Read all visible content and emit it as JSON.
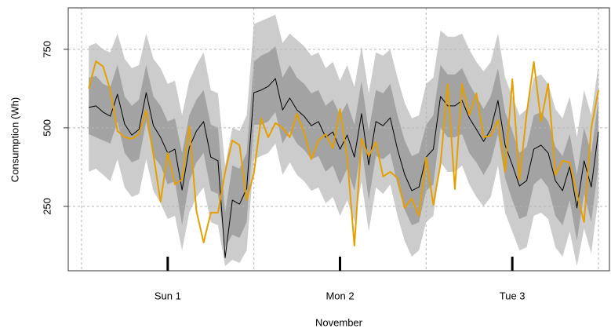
{
  "chart_data": {
    "type": "line",
    "x_label": "November",
    "y_label": "Consumption (Wh)",
    "x": [
      1,
      2,
      3,
      4,
      5,
      6,
      7,
      8,
      9,
      10,
      11,
      12,
      13,
      14,
      15,
      16,
      17,
      18,
      19,
      20,
      21,
      22,
      23,
      24,
      25,
      26,
      27,
      28,
      29,
      30,
      31,
      32,
      33,
      34,
      35,
      36,
      37,
      38,
      39,
      40,
      41,
      42,
      43,
      44,
      45,
      46,
      47,
      48,
      49,
      50,
      51,
      52,
      53,
      54,
      55,
      56,
      57,
      58,
      59,
      60,
      61,
      62,
      63,
      64,
      65,
      66,
      67,
      68,
      69,
      70,
      71,
      72
    ],
    "xlim": [
      -1.86,
      73.53
    ],
    "ylim": [
      45,
      882
    ],
    "xticks": [
      {
        "value": 12,
        "label": "Sun 1"
      },
      {
        "value": 36,
        "label": "Mon 2"
      },
      {
        "value": 60,
        "label": "Tue 3"
      }
    ],
    "xgrid": [
      0,
      24,
      48,
      72
    ],
    "yticks": [
      250,
      500,
      750
    ],
    "grid": true,
    "bands": [
      {
        "color": "#cccccc",
        "upper": [
          760,
          770,
          750,
          740,
          800,
          720,
          690,
          700,
          800,
          720,
          690,
          640,
          650,
          540,
          650,
          700,
          740,
          620,
          610,
          380,
          500,
          490,
          540,
          830,
          840,
          850,
          860,
          770,
          800,
          780,
          760,
          730,
          740,
          690,
          710,
          650,
          700,
          630,
          760,
          610,
          740,
          730,
          750,
          660,
          580,
          530,
          540,
          640,
          660,
          810,
          790,
          790,
          800,
          750,
          710,
          680,
          710,
          800,
          660,
          600,
          540,
          560,
          660,
          670,
          640,
          560,
          530,
          600,
          470,
          620,
          540,
          700
        ],
        "lower": [
          360,
          370,
          350,
          330,
          400,
          310,
          280,
          290,
          400,
          300,
          260,
          210,
          220,
          110,
          230,
          280,
          310,
          200,
          190,
          60,
          80,
          70,
          110,
          400,
          410,
          420,
          450,
          350,
          390,
          350,
          330,
          300,
          310,
          260,
          280,
          220,
          270,
          200,
          330,
          170,
          310,
          290,
          320,
          220,
          140,
          90,
          110,
          200,
          220,
          390,
          360,
          360,
          380,
          320,
          280,
          250,
          280,
          380,
          230,
          170,
          110,
          120,
          220,
          230,
          210,
          120,
          90,
          170,
          60,
          180,
          100,
          280
        ]
      },
      {
        "color": "#a3a3a3",
        "upper": [
          660,
          665,
          640,
          630,
          700,
          600,
          570,
          590,
          700,
          600,
          570,
          520,
          530,
          420,
          540,
          590,
          620,
          510,
          500,
          230,
          380,
          370,
          420,
          710,
          730,
          740,
          760,
          660,
          700,
          660,
          640,
          610,
          620,
          570,
          590,
          540,
          580,
          510,
          650,
          490,
          620,
          610,
          640,
          540,
          460,
          410,
          420,
          510,
          540,
          700,
          670,
          670,
          690,
          640,
          600,
          560,
          600,
          690,
          550,
          490,
          420,
          440,
          540,
          550,
          520,
          440,
          410,
          480,
          350,
          500,
          420,
          590
        ],
        "lower": [
          480,
          470,
          460,
          450,
          520,
          420,
          390,
          400,
          520,
          410,
          380,
          320,
          330,
          190,
          330,
          390,
          420,
          300,
          290,
          120,
          160,
          150,
          200,
          510,
          510,
          520,
          550,
          450,
          490,
          450,
          430,
          400,
          410,
          360,
          380,
          320,
          370,
          300,
          440,
          270,
          410,
          400,
          420,
          320,
          240,
          190,
          200,
          300,
          320,
          500,
          470,
          470,
          480,
          420,
          390,
          350,
          390,
          480,
          340,
          270,
          210,
          220,
          320,
          340,
          310,
          220,
          190,
          270,
          140,
          290,
          200,
          380
        ]
      }
    ],
    "lines": [
      {
        "color": "#000000",
        "width": 1,
        "values": [
          565,
          570,
          550,
          537,
          607,
          512,
          477,
          495,
          612,
          507,
          470,
          420,
          432,
          302,
          437,
          490,
          520,
          407,
          395,
          87,
          270,
          257,
          307,
          612,
          620,
          632,
          657,
          557,
          595,
          557,
          537,
          507,
          520,
          470,
          487,
          432,
          477,
          407,
          545,
          382,
          520,
          507,
          532,
          432,
          352,
          300,
          312,
          407,
          432,
          600,
          570,
          570,
          587,
          532,
          495,
          457,
          495,
          587,
          445,
          382,
          315,
          332,
          432,
          445,
          420,
          332,
          300,
          377,
          245,
          395,
          312,
          487
        ]
      },
      {
        "color": "#e69f00",
        "width": 2,
        "values": [
          625,
          712,
          695,
          620,
          490,
          470,
          465,
          480,
          555,
          415,
          265,
          420,
          320,
          335,
          505,
          235,
          135,
          230,
          230,
          360,
          460,
          445,
          270,
          355,
          530,
          470,
          515,
          500,
          470,
          545,
          485,
          400,
          460,
          480,
          435,
          560,
          405,
          125,
          465,
          410,
          455,
          345,
          360,
          340,
          245,
          275,
          220,
          405,
          255,
          385,
          640,
          305,
          640,
          540,
          610,
          470,
          475,
          525,
          360,
          655,
          335,
          545,
          710,
          520,
          640,
          350,
          395,
          390,
          290,
          200,
          500,
          620
        ]
      }
    ]
  }
}
